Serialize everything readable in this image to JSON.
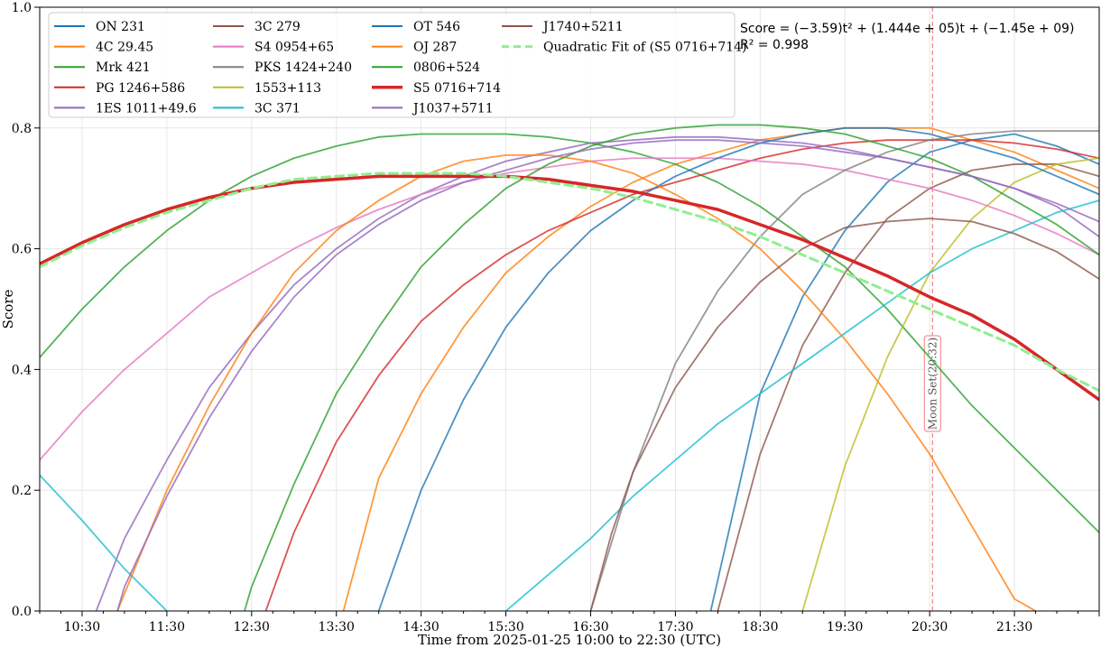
{
  "chart_data": {
    "type": "line",
    "xlabel": "Time from 2025-01-25 10:00 to 22:30 (UTC)",
    "ylabel": "Score",
    "xlim": [
      "10:00",
      "22:30"
    ],
    "ylim": [
      0.0,
      1.0
    ],
    "x_ticks": [
      "10:30",
      "11:30",
      "12:30",
      "13:30",
      "14:30",
      "15:30",
      "16:30",
      "17:30",
      "18:30",
      "19:30",
      "20:30",
      "21:30"
    ],
    "y_ticks": [
      "0.0",
      "0.2",
      "0.4",
      "0.6",
      "0.8",
      "1.0"
    ],
    "grid": true,
    "legend_position": "top-left",
    "fit_annotation": {
      "equation": "Score = (−3.59)t² + (1.444e + 05)t + (−1.45e + 09)",
      "r2": "R² = 0.998"
    },
    "vline": {
      "x": "20:32",
      "label": "Moon Set(20:32)",
      "color": "#f08080"
    },
    "series": [
      {
        "name": "ON 231",
        "color": "#1f77b4",
        "x": [
          "17:55",
          "18:30",
          "19:00",
          "19:30",
          "20:00",
          "20:30",
          "21:00",
          "21:30",
          "22:00",
          "22:30"
        ],
        "y": [
          0.0,
          0.36,
          0.52,
          0.63,
          0.71,
          0.76,
          0.78,
          0.79,
          0.77,
          0.74
        ]
      },
      {
        "name": "4C 29.45",
        "color": "#ff7f0e",
        "x": [
          "13:35",
          "14:00",
          "14:30",
          "15:00",
          "15:30",
          "16:00",
          "16:30",
          "17:00",
          "17:30",
          "18:00",
          "18:30",
          "19:00",
          "19:30",
          "20:00",
          "20:30",
          "21:00",
          "21:30",
          "22:00",
          "22:30"
        ],
        "y": [
          0.0,
          0.22,
          0.36,
          0.47,
          0.56,
          0.62,
          0.67,
          0.71,
          0.74,
          0.76,
          0.78,
          0.79,
          0.8,
          0.8,
          0.8,
          0.78,
          0.76,
          0.73,
          0.7
        ]
      },
      {
        "name": "Mrk 421",
        "color": "#2ca02c",
        "x": [
          "10:00",
          "10:30",
          "11:00",
          "11:30",
          "12:00",
          "12:30",
          "13:00",
          "13:30",
          "14:00",
          "14:30",
          "15:00",
          "15:30",
          "16:00",
          "16:30",
          "17:00",
          "17:30",
          "18:00",
          "18:30",
          "19:00",
          "19:30",
          "20:00",
          "20:30",
          "21:00",
          "21:30",
          "22:00",
          "22:30"
        ],
        "y": [
          0.42,
          0.5,
          0.57,
          0.63,
          0.68,
          0.72,
          0.75,
          0.77,
          0.785,
          0.79,
          0.79,
          0.79,
          0.785,
          0.775,
          0.76,
          0.74,
          0.71,
          0.67,
          0.62,
          0.57,
          0.5,
          0.42,
          0.34,
          0.27,
          0.2,
          0.13
        ]
      },
      {
        "name": "PG 1246+586",
        "color": "#d62728",
        "x": [
          "12:40",
          "13:00",
          "13:30",
          "14:00",
          "14:30",
          "15:00",
          "15:30",
          "16:00",
          "16:30",
          "17:00",
          "17:30",
          "18:00",
          "18:30",
          "19:00",
          "19:30",
          "20:00",
          "20:30",
          "21:00",
          "21:30",
          "22:00",
          "22:30"
        ],
        "y": [
          0.0,
          0.13,
          0.28,
          0.39,
          0.48,
          0.54,
          0.59,
          0.63,
          0.66,
          0.69,
          0.71,
          0.73,
          0.75,
          0.765,
          0.775,
          0.78,
          0.78,
          0.78,
          0.775,
          0.765,
          0.75
        ]
      },
      {
        "name": "1ES 1011+49.6",
        "color": "#9467bd",
        "x": [
          "10:40",
          "11:00",
          "11:30",
          "12:00",
          "12:30",
          "13:00",
          "13:30",
          "14:00",
          "14:30",
          "15:00",
          "15:30",
          "16:00",
          "16:30",
          "17:00",
          "17:30",
          "18:00",
          "18:30",
          "19:00",
          "19:30",
          "20:00",
          "20:30",
          "21:00",
          "21:30",
          "22:00",
          "22:30"
        ],
        "y": [
          0.0,
          0.12,
          0.25,
          0.37,
          0.46,
          0.54,
          0.6,
          0.65,
          0.69,
          0.72,
          0.745,
          0.76,
          0.775,
          0.78,
          0.785,
          0.785,
          0.78,
          0.775,
          0.765,
          0.75,
          0.735,
          0.72,
          0.7,
          0.67,
          0.62
        ]
      },
      {
        "name": "3C 279",
        "color": "#8c564b",
        "x": [
          "18:00",
          "18:30",
          "19:00",
          "19:30",
          "20:00",
          "20:30",
          "21:00",
          "21:30",
          "22:00",
          "22:30"
        ],
        "y": [
          0.0,
          0.26,
          0.44,
          0.56,
          0.65,
          0.7,
          0.73,
          0.74,
          0.74,
          0.72
        ]
      },
      {
        "name": "S4 0954+65",
        "color": "#e377c2",
        "x": [
          "10:00",
          "10:30",
          "11:00",
          "11:30",
          "12:00",
          "12:30",
          "13:00",
          "13:30",
          "14:00",
          "14:30",
          "15:00",
          "15:30",
          "16:00",
          "16:30",
          "17:00",
          "17:30",
          "18:00",
          "18:30",
          "19:00",
          "19:30",
          "20:00",
          "20:30",
          "21:00",
          "21:30",
          "22:00",
          "22:30"
        ],
        "y": [
          0.25,
          0.33,
          0.4,
          0.46,
          0.52,
          0.56,
          0.6,
          0.635,
          0.665,
          0.69,
          0.71,
          0.725,
          0.735,
          0.745,
          0.75,
          0.75,
          0.75,
          0.745,
          0.74,
          0.73,
          0.715,
          0.7,
          0.68,
          0.655,
          0.625,
          0.59
        ]
      },
      {
        "name": "PKS 1424+240",
        "color": "#7f7f7f",
        "x": [
          "16:30",
          "17:00",
          "17:30",
          "18:00",
          "18:30",
          "19:00",
          "19:30",
          "20:00",
          "20:30",
          "21:00",
          "21:30",
          "22:00",
          "22:30"
        ],
        "y": [
          0.0,
          0.23,
          0.41,
          0.53,
          0.62,
          0.69,
          0.73,
          0.76,
          0.78,
          0.79,
          0.795,
          0.795,
          0.795
        ]
      },
      {
        "name": "1553+113",
        "color": "#bcbd22",
        "x": [
          "19:00",
          "19:30",
          "20:00",
          "20:30",
          "21:00",
          "21:30",
          "22:00",
          "22:30"
        ],
        "y": [
          0.0,
          0.24,
          0.42,
          0.56,
          0.65,
          0.71,
          0.74,
          0.75
        ]
      },
      {
        "name": "3C 371",
        "color": "#17becf",
        "x": [
          "10:00",
          "10:30",
          "11:00",
          "11:30",
          "15:30",
          "16:00",
          "16:30",
          "17:00",
          "17:30",
          "18:00",
          "18:30",
          "19:00",
          "19:30",
          "20:00",
          "20:30",
          "21:00",
          "21:30",
          "22:00",
          "22:30"
        ],
        "y": [
          0.225,
          0.15,
          0.07,
          0.0,
          0.0,
          0.06,
          0.12,
          0.19,
          0.25,
          0.31,
          0.36,
          0.41,
          0.46,
          0.51,
          0.56,
          0.6,
          0.63,
          0.66,
          0.68
        ]
      },
      {
        "name": "OT 546",
        "color": "#1f77b4",
        "x": [
          "14:00",
          "14:30",
          "15:00",
          "15:30",
          "16:00",
          "16:30",
          "17:00",
          "17:30",
          "18:00",
          "18:30",
          "19:00",
          "19:30",
          "20:00",
          "20:30",
          "21:00",
          "21:30",
          "22:00",
          "22:30"
        ],
        "y": [
          0.0,
          0.2,
          0.35,
          0.47,
          0.56,
          0.63,
          0.68,
          0.72,
          0.75,
          0.775,
          0.79,
          0.8,
          0.8,
          0.79,
          0.77,
          0.75,
          0.72,
          0.69
        ]
      },
      {
        "name": "OJ 287",
        "color": "#ff7f0e",
        "x": [
          "10:55",
          "11:30",
          "12:00",
          "12:30",
          "13:00",
          "13:30",
          "14:00",
          "14:30",
          "15:00",
          "15:30",
          "16:00",
          "16:30",
          "17:00",
          "17:30",
          "18:00",
          "18:30",
          "19:00",
          "19:30",
          "20:00",
          "20:30",
          "21:00",
          "21:30",
          "21:45"
        ],
        "y": [
          0.0,
          0.2,
          0.34,
          0.46,
          0.56,
          0.63,
          0.68,
          0.72,
          0.745,
          0.755,
          0.755,
          0.745,
          0.725,
          0.69,
          0.65,
          0.6,
          0.53,
          0.45,
          0.36,
          0.26,
          0.14,
          0.02,
          0.0
        ]
      },
      {
        "name": "0806+524",
        "color": "#2ca02c",
        "x": [
          "12:25",
          "12:30",
          "13:00",
          "13:30",
          "14:00",
          "14:30",
          "15:00",
          "15:30",
          "16:00",
          "16:30",
          "17:00",
          "17:30",
          "18:00",
          "18:30",
          "19:00",
          "19:30",
          "20:00",
          "20:30",
          "21:00",
          "21:30",
          "22:00",
          "22:30"
        ],
        "y": [
          0.0,
          0.04,
          0.21,
          0.36,
          0.47,
          0.57,
          0.64,
          0.7,
          0.74,
          0.77,
          0.79,
          0.8,
          0.805,
          0.805,
          0.8,
          0.79,
          0.77,
          0.75,
          0.72,
          0.68,
          0.64,
          0.59
        ]
      },
      {
        "name": "S5 0716+714",
        "color": "#d62728",
        "bold": true,
        "x": [
          "10:00",
          "10:30",
          "11:00",
          "11:30",
          "12:00",
          "12:30",
          "13:00",
          "13:30",
          "14:00",
          "14:30",
          "15:00",
          "15:30",
          "16:00",
          "16:30",
          "17:00",
          "17:30",
          "18:00",
          "18:30",
          "19:00",
          "19:30",
          "20:00",
          "20:30",
          "21:00",
          "21:30",
          "22:00",
          "22:30"
        ],
        "y": [
          0.575,
          0.61,
          0.64,
          0.665,
          0.685,
          0.7,
          0.71,
          0.715,
          0.72,
          0.72,
          0.72,
          0.72,
          0.715,
          0.705,
          0.695,
          0.68,
          0.665,
          0.64,
          0.615,
          0.585,
          0.555,
          0.52,
          0.49,
          0.45,
          0.4,
          0.35
        ]
      },
      {
        "name": "J1037+5711",
        "color": "#9467bd",
        "x": [
          "10:55",
          "11:00",
          "11:30",
          "12:00",
          "12:30",
          "13:00",
          "13:30",
          "14:00",
          "14:30",
          "15:00",
          "15:30",
          "16:00",
          "16:30",
          "17:00",
          "17:30",
          "18:00",
          "18:30",
          "19:00",
          "19:30",
          "20:00",
          "20:30",
          "21:00",
          "21:30",
          "22:00",
          "22:30"
        ],
        "y": [
          0.0,
          0.04,
          0.19,
          0.32,
          0.43,
          0.52,
          0.59,
          0.64,
          0.68,
          0.71,
          0.73,
          0.75,
          0.765,
          0.775,
          0.78,
          0.78,
          0.775,
          0.77,
          0.76,
          0.75,
          0.735,
          0.72,
          0.7,
          0.675,
          0.645
        ]
      },
      {
        "name": "J1740+5211",
        "color": "#8c564b",
        "x": [
          "16:30",
          "16:45",
          "17:00",
          "17:30",
          "18:00",
          "18:30",
          "19:00",
          "19:30",
          "20:00",
          "20:30",
          "21:00",
          "21:30",
          "22:00",
          "22:30"
        ],
        "y": [
          0.0,
          0.13,
          0.23,
          0.37,
          0.47,
          0.545,
          0.6,
          0.635,
          0.645,
          0.65,
          0.645,
          0.625,
          0.595,
          0.55
        ]
      },
      {
        "name": "Quadratic Fit of (S5 0716+714)",
        "color": "#90ee90",
        "dashed": true,
        "x": [
          "10:00",
          "10:30",
          "11:00",
          "11:30",
          "12:00",
          "12:30",
          "13:00",
          "13:30",
          "14:00",
          "14:30",
          "15:00",
          "15:30",
          "16:00",
          "16:30",
          "17:00",
          "17:30",
          "18:00",
          "18:30",
          "19:00",
          "19:30",
          "20:00",
          "20:30",
          "21:00",
          "21:30",
          "22:00",
          "22:30"
        ],
        "y": [
          0.57,
          0.605,
          0.635,
          0.66,
          0.68,
          0.7,
          0.715,
          0.72,
          0.725,
          0.725,
          0.725,
          0.72,
          0.71,
          0.7,
          0.685,
          0.665,
          0.645,
          0.62,
          0.59,
          0.56,
          0.53,
          0.5,
          0.47,
          0.44,
          0.4,
          0.365
        ]
      }
    ]
  }
}
